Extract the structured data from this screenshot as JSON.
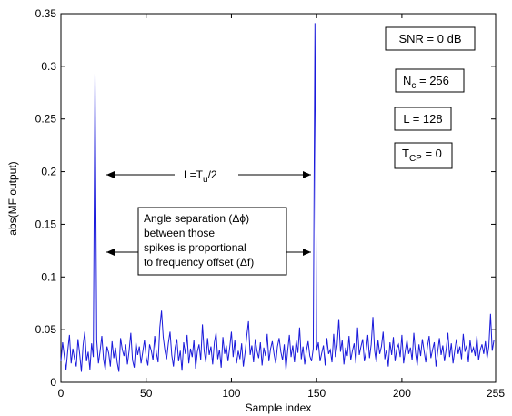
{
  "chart_data": {
    "type": "line",
    "xlabel": "Sample index",
    "ylabel": "abs(MF output)",
    "xlim": [
      0,
      255
    ],
    "ylim": [
      0,
      0.35
    ],
    "x_ticks": [
      0,
      50,
      100,
      150,
      200,
      255
    ],
    "y_ticks": [
      0,
      0.05,
      0.1,
      0.15,
      0.2,
      0.25,
      0.3,
      0.35
    ],
    "x_tick_labels": [
      "0",
      "50",
      "100",
      "150",
      "200",
      "255"
    ],
    "y_tick_labels": [
      "0",
      "0.05",
      "0.1",
      "0.15",
      "0.2",
      "0.25",
      "0.3",
      "0.35"
    ],
    "grid": false,
    "line_color": "#1a1adb",
    "series": [
      {
        "values": [
          0.02,
          0.038,
          0.025,
          0.012,
          0.03,
          0.045,
          0.018,
          0.032,
          0.022,
          0.015,
          0.041,
          0.027,
          0.01,
          0.035,
          0.048,
          0.02,
          0.029,
          0.012,
          0.037,
          0.024,
          0.293,
          0.04,
          0.018,
          0.03,
          0.044,
          0.022,
          0.012,
          0.034,
          0.028,
          0.015,
          0.039,
          0.023,
          0.033,
          0.019,
          0.01,
          0.042,
          0.031,
          0.025,
          0.036,
          0.017,
          0.03,
          0.047,
          0.021,
          0.014,
          0.038,
          0.026,
          0.034,
          0.018,
          0.029,
          0.04,
          0.024,
          0.016,
          0.036,
          0.03,
          0.021,
          0.044,
          0.028,
          0.019,
          0.052,
          0.068,
          0.043,
          0.03,
          0.022,
          0.037,
          0.048,
          0.026,
          0.015,
          0.033,
          0.041,
          0.02,
          0.03,
          0.011,
          0.038,
          0.027,
          0.045,
          0.018,
          0.032,
          0.024,
          0.04,
          0.013,
          0.029,
          0.036,
          0.021,
          0.055,
          0.03,
          0.019,
          0.042,
          0.026,
          0.034,
          0.017,
          0.038,
          0.047,
          0.022,
          0.031,
          0.014,
          0.043,
          0.027,
          0.035,
          0.02,
          0.033,
          0.048,
          0.024,
          0.04,
          0.018,
          0.03,
          0.022,
          0.037,
          0.015,
          0.028,
          0.044,
          0.058,
          0.026,
          0.035,
          0.019,
          0.041,
          0.03,
          0.023,
          0.038,
          0.016,
          0.033,
          0.025,
          0.046,
          0.02,
          0.032,
          0.039,
          0.027,
          0.018,
          0.034,
          0.042,
          0.029,
          0.021,
          0.036,
          0.012,
          0.03,
          0.045,
          0.024,
          0.035,
          0.019,
          0.04,
          0.028,
          0.052,
          0.022,
          0.034,
          0.017,
          0.03,
          0.039,
          0.025,
          0.02,
          0.032,
          0.341,
          0.03,
          0.038,
          0.02,
          0.028,
          0.035,
          0.016,
          0.042,
          0.027,
          0.031,
          0.019,
          0.046,
          0.024,
          0.035,
          0.06,
          0.029,
          0.04,
          0.017,
          0.033,
          0.025,
          0.044,
          0.021,
          0.03,
          0.037,
          0.018,
          0.052,
          0.026,
          0.034,
          0.041,
          0.02,
          0.029,
          0.045,
          0.023,
          0.036,
          0.062,
          0.03,
          0.019,
          0.04,
          0.027,
          0.034,
          0.048,
          0.022,
          0.031,
          0.015,
          0.038,
          0.026,
          0.043,
          0.02,
          0.032,
          0.036,
          0.024,
          0.045,
          0.018,
          0.03,
          0.04,
          0.027,
          0.033,
          0.021,
          0.047,
          0.028,
          0.016,
          0.036,
          0.025,
          0.041,
          0.03,
          0.019,
          0.034,
          0.044,
          0.023,
          0.031,
          0.038,
          0.015,
          0.029,
          0.042,
          0.026,
          0.035,
          0.02,
          0.032,
          0.047,
          0.024,
          0.037,
          0.018,
          0.03,
          0.041,
          0.027,
          0.034,
          0.022,
          0.046,
          0.029,
          0.035,
          0.019,
          0.04,
          0.028,
          0.033,
          0.025,
          0.044,
          0.021,
          0.031,
          0.036,
          0.027,
          0.039,
          0.023,
          0.034,
          0.065,
          0.03,
          0.04
        ]
      }
    ],
    "annotations": {
      "snr": "SNR = 0 dB",
      "nc_main": "N",
      "nc_sub": "c",
      "nc_rest": " = 256",
      "l_box": "L = 128",
      "tcp_main": "T",
      "tcp_sub": "CP",
      "tcp_rest": " = 0",
      "arrow_label_main": "L=T",
      "arrow_label_sub": "u",
      "arrow_label_rest": "/2",
      "note_lines": [
        "Angle separation (Δϕ)",
        "between those",
        "spikes is proportional",
        "to frequency offset (Δf)"
      ]
    }
  }
}
